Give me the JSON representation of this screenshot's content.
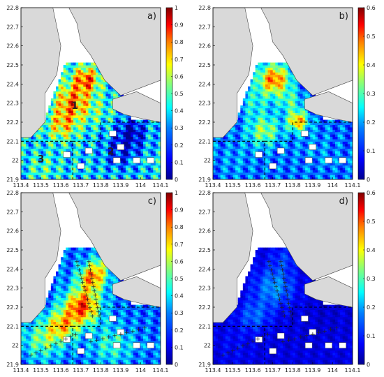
{
  "chart_data": [
    {
      "type": "heatmap",
      "panel_label": "a)",
      "xlim": [
        113.4,
        114.1
      ],
      "ylim": [
        21.9,
        22.8
      ],
      "x_ticks": [
        "113.4",
        "113.5",
        "113.6",
        "113.7",
        "113.8",
        "113.9",
        "114",
        "114.1"
      ],
      "y_ticks": [
        "21.9",
        "22",
        "22.1",
        "22.2",
        "22.3",
        "22.4",
        "22.5",
        "22.6",
        "22.7",
        "22.8"
      ],
      "colorbar": {
        "min": 0,
        "max": 1,
        "ticks": [
          "0",
          "0.1",
          "0.2",
          "0.3",
          "0.4",
          "0.5",
          "0.6",
          "0.7",
          "0.8",
          "0.9",
          "1"
        ]
      },
      "region_labels": [
        {
          "text": "1",
          "lon": 113.67,
          "lat": 22.27
        },
        {
          "text": "2",
          "lon": 113.85,
          "lat": 22.03
        },
        {
          "text": "3",
          "lon": 113.5,
          "lat": 21.99
        }
      ],
      "grid": false
    },
    {
      "type": "heatmap",
      "panel_label": "b)",
      "xlim": [
        113.4,
        114.1
      ],
      "ylim": [
        21.9,
        22.8
      ],
      "x_ticks": [
        "113.4",
        "113.5",
        "113.6",
        "113.7",
        "113.8",
        "113.9",
        "114",
        "114.1"
      ],
      "y_ticks": [
        "21.9",
        "22",
        "22.1",
        "22.2",
        "22.3",
        "22.4",
        "22.5",
        "22.6",
        "22.7",
        "22.8"
      ],
      "colorbar": {
        "min": 0,
        "max": 0.6,
        "ticks": [
          "0",
          "0.1",
          "0.2",
          "0.3",
          "0.4",
          "0.5",
          "0.6"
        ]
      },
      "grid": false
    },
    {
      "type": "heatmap",
      "panel_label": "c)",
      "xlim": [
        113.4,
        114.1
      ],
      "ylim": [
        21.9,
        22.8
      ],
      "x_ticks": [
        "113.4",
        "113.5",
        "113.6",
        "113.7",
        "113.8",
        "113.9",
        "114",
        "114.1"
      ],
      "y_ticks": [
        "21.9",
        "22",
        "22.1",
        "22.2",
        "22.3",
        "22.4",
        "22.5",
        "22.6",
        "22.7",
        "22.8"
      ],
      "colorbar": {
        "min": 0,
        "max": 1,
        "ticks": [
          "0",
          "0.1",
          "0.2",
          "0.3",
          "0.4",
          "0.5",
          "0.6",
          "0.7",
          "0.8",
          "0.9",
          "1"
        ]
      },
      "grid": false
    },
    {
      "type": "heatmap",
      "panel_label": "d)",
      "xlim": [
        113.4,
        114.1
      ],
      "ylim": [
        21.9,
        22.8
      ],
      "x_ticks": [
        "113.4",
        "113.5",
        "113.6",
        "113.7",
        "113.8",
        "113.9",
        "114",
        "114.1"
      ],
      "y_ticks": [
        "21.9",
        "22",
        "22.1",
        "22.2",
        "22.3",
        "22.4",
        "22.5",
        "22.6",
        "22.7",
        "22.8"
      ],
      "colorbar": {
        "min": 0,
        "max": 0.6,
        "ticks": [
          "0",
          "0.1",
          "0.2",
          "0.3",
          "0.4",
          "0.5",
          "0.6"
        ]
      },
      "grid": false
    }
  ],
  "colormap": [
    "#00008f",
    "#0000ff",
    "#0080ff",
    "#00ffff",
    "#80ff80",
    "#ffff00",
    "#ff8000",
    "#ff0000",
    "#800000"
  ],
  "colors": {
    "land": "#d9d9d9",
    "water": "#ffffff",
    "coast": "#444444"
  }
}
